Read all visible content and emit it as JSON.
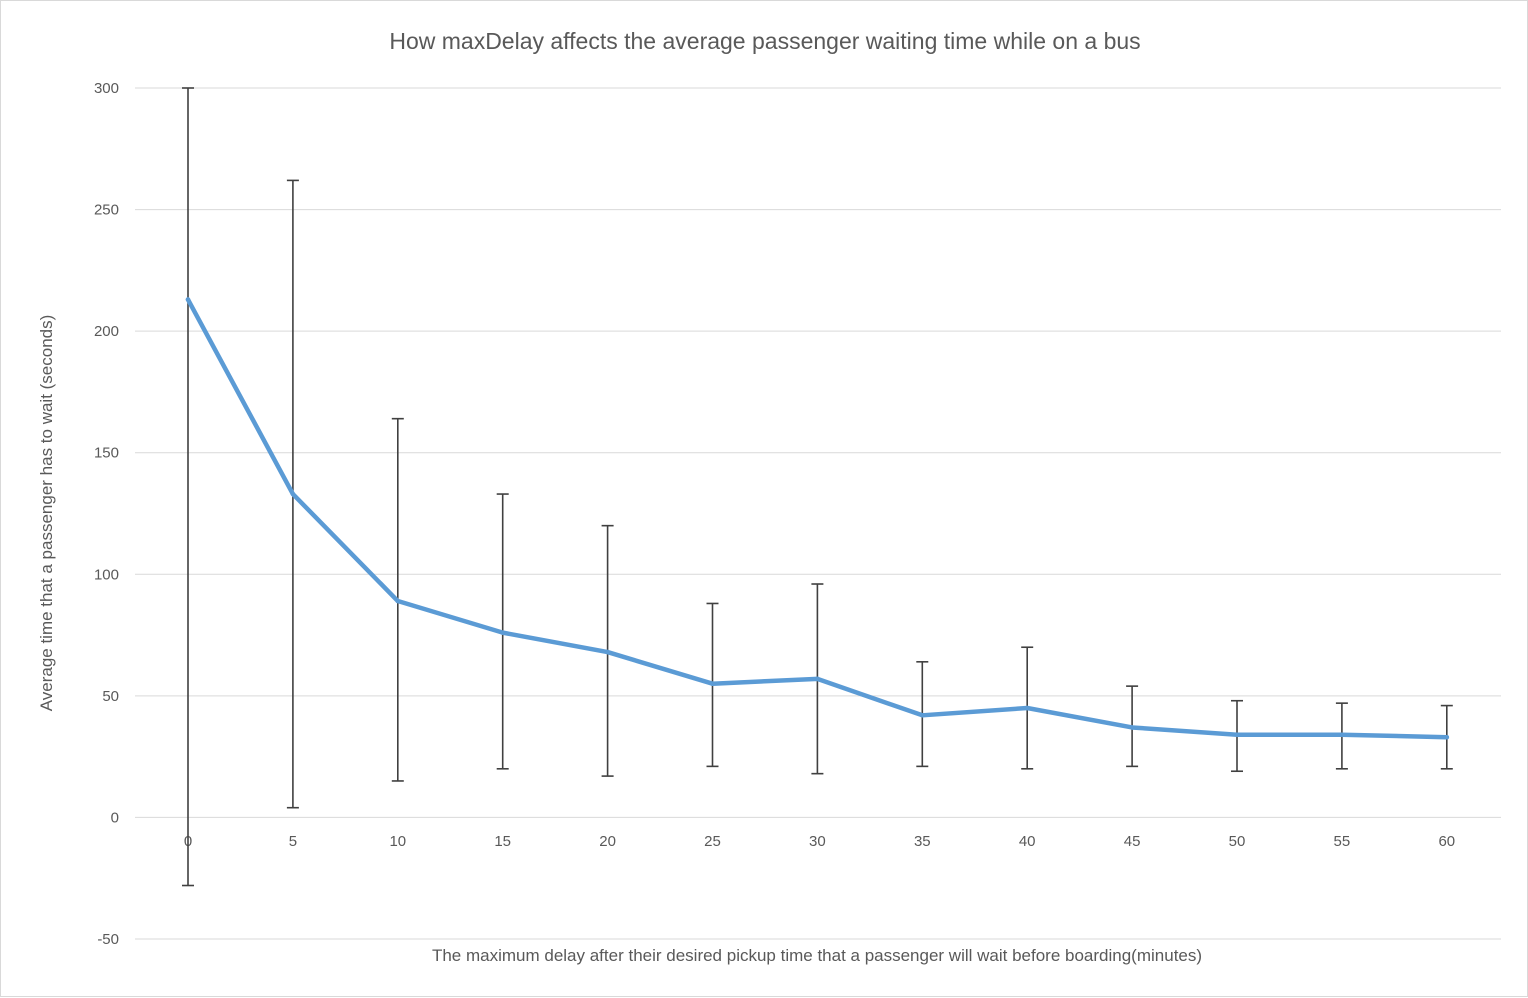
{
  "chart_data": {
    "type": "line",
    "title": "How maxDelay affects the average passenger waiting time while on a bus",
    "xlabel": "The maximum delay after their desired pickup time that a passenger will wait before boarding(minutes)",
    "ylabel": "Average time that a passenger has to wait (seconds)",
    "ylim": [
      -50,
      300
    ],
    "yticks": [
      -50,
      0,
      50,
      100,
      150,
      200,
      250,
      300
    ],
    "categories": [
      "0",
      "5",
      "10",
      "15",
      "20",
      "25",
      "30",
      "35",
      "40",
      "45",
      "50",
      "55",
      "60"
    ],
    "series": [
      {
        "values": [
          213,
          133,
          89,
          76,
          68,
          55,
          57,
          42,
          45,
          37,
          34,
          34,
          33
        ],
        "error_low": [
          -28,
          4,
          15,
          20,
          17,
          21,
          18,
          21,
          20,
          21,
          19,
          20,
          20
        ],
        "error_high": [
          300,
          262,
          164,
          133,
          120,
          88,
          96,
          64,
          70,
          54,
          48,
          47,
          46
        ],
        "color": "#5b9bd5"
      }
    ],
    "error_bar_color": "#404040",
    "gridlines": true,
    "legend": "none"
  }
}
